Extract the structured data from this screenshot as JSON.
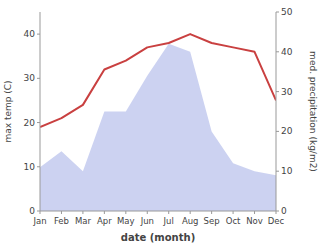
{
  "chart_data": {
    "type": "line",
    "categories": [
      "Jan",
      "Feb",
      "Mar",
      "Apr",
      "May",
      "Jun",
      "Jul",
      "Aug",
      "Sep",
      "Oct",
      "Nov",
      "Dec"
    ],
    "series": [
      {
        "type": "area",
        "axis": "y2",
        "color": "#aab4e8",
        "values": [
          11,
          15,
          10,
          25,
          25,
          34,
          42,
          40,
          20,
          12,
          10,
          9
        ]
      },
      {
        "type": "line",
        "color": "#c94040",
        "values": [
          19,
          21,
          24,
          32,
          34,
          37,
          38,
          40,
          38,
          37,
          36,
          25
        ]
      }
    ],
    "x_label": "date (month)",
    "y_label": "max temp (C)",
    "y2_label": "med. precipitation (kg/m2)",
    "ylim": [
      0,
      45
    ],
    "yticks": [
      0,
      10,
      20,
      30,
      40
    ],
    "y2lim": [
      0,
      50
    ],
    "y2ticks": [
      0,
      10,
      20,
      30,
      40,
      50
    ],
    "grid": false
  }
}
